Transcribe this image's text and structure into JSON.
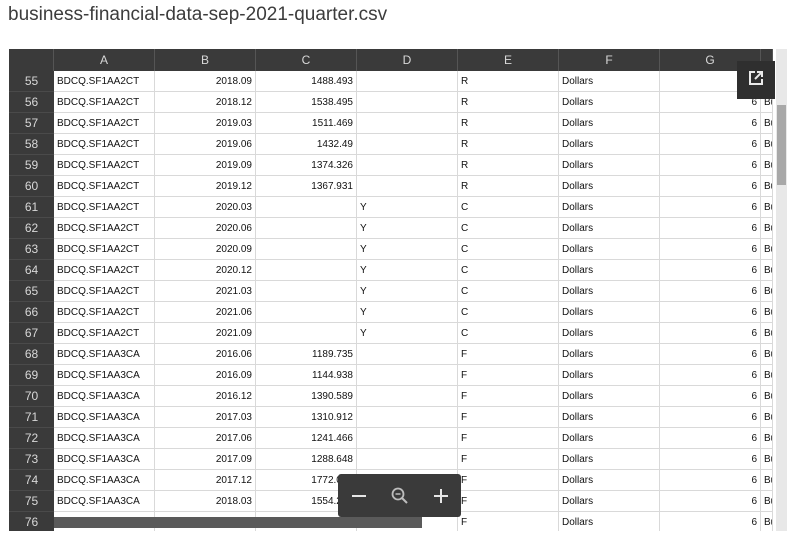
{
  "title": "business-financial-data-sep-2021-quarter.csv",
  "columns": [
    "A",
    "B",
    "C",
    "D",
    "E",
    "F",
    "G",
    ""
  ],
  "rows": [
    {
      "n": "55",
      "a": "BDCQ.SF1AA2CT",
      "b": "2018.09",
      "c": "1488.493",
      "d": "",
      "e": "R",
      "f": "Dollars",
      "g": "6",
      "h": "Bu"
    },
    {
      "n": "56",
      "a": "BDCQ.SF1AA2CT",
      "b": "2018.12",
      "c": "1538.495",
      "d": "",
      "e": "R",
      "f": "Dollars",
      "g": "6",
      "h": "Bu"
    },
    {
      "n": "57",
      "a": "BDCQ.SF1AA2CT",
      "b": "2019.03",
      "c": "1511.469",
      "d": "",
      "e": "R",
      "f": "Dollars",
      "g": "6",
      "h": "Bu"
    },
    {
      "n": "58",
      "a": "BDCQ.SF1AA2CT",
      "b": "2019.06",
      "c": "1432.49",
      "d": "",
      "e": "R",
      "f": "Dollars",
      "g": "6",
      "h": "Bu"
    },
    {
      "n": "59",
      "a": "BDCQ.SF1AA2CT",
      "b": "2019.09",
      "c": "1374.326",
      "d": "",
      "e": "R",
      "f": "Dollars",
      "g": "6",
      "h": "Bu"
    },
    {
      "n": "60",
      "a": "BDCQ.SF1AA2CT",
      "b": "2019.12",
      "c": "1367.931",
      "d": "",
      "e": "R",
      "f": "Dollars",
      "g": "6",
      "h": "Bu"
    },
    {
      "n": "61",
      "a": "BDCQ.SF1AA2CT",
      "b": "2020.03",
      "c": "",
      "d": "Y",
      "e": "C",
      "f": "Dollars",
      "g": "6",
      "h": "Bu"
    },
    {
      "n": "62",
      "a": "BDCQ.SF1AA2CT",
      "b": "2020.06",
      "c": "",
      "d": "Y",
      "e": "C",
      "f": "Dollars",
      "g": "6",
      "h": "Bu"
    },
    {
      "n": "63",
      "a": "BDCQ.SF1AA2CT",
      "b": "2020.09",
      "c": "",
      "d": "Y",
      "e": "C",
      "f": "Dollars",
      "g": "6",
      "h": "Bu"
    },
    {
      "n": "64",
      "a": "BDCQ.SF1AA2CT",
      "b": "2020.12",
      "c": "",
      "d": "Y",
      "e": "C",
      "f": "Dollars",
      "g": "6",
      "h": "Bu"
    },
    {
      "n": "65",
      "a": "BDCQ.SF1AA2CT",
      "b": "2021.03",
      "c": "",
      "d": "Y",
      "e": "C",
      "f": "Dollars",
      "g": "6",
      "h": "Bu"
    },
    {
      "n": "66",
      "a": "BDCQ.SF1AA2CT",
      "b": "2021.06",
      "c": "",
      "d": "Y",
      "e": "C",
      "f": "Dollars",
      "g": "6",
      "h": "Bu"
    },
    {
      "n": "67",
      "a": "BDCQ.SF1AA2CT",
      "b": "2021.09",
      "c": "",
      "d": "Y",
      "e": "C",
      "f": "Dollars",
      "g": "6",
      "h": "Bu"
    },
    {
      "n": "68",
      "a": "BDCQ.SF1AA3CA",
      "b": "2016.06",
      "c": "1189.735",
      "d": "",
      "e": "F",
      "f": "Dollars",
      "g": "6",
      "h": "Bu"
    },
    {
      "n": "69",
      "a": "BDCQ.SF1AA3CA",
      "b": "2016.09",
      "c": "1144.938",
      "d": "",
      "e": "F",
      "f": "Dollars",
      "g": "6",
      "h": "Bu"
    },
    {
      "n": "70",
      "a": "BDCQ.SF1AA3CA",
      "b": "2016.12",
      "c": "1390.589",
      "d": "",
      "e": "F",
      "f": "Dollars",
      "g": "6",
      "h": "Bu"
    },
    {
      "n": "71",
      "a": "BDCQ.SF1AA3CA",
      "b": "2017.03",
      "c": "1310.912",
      "d": "",
      "e": "F",
      "f": "Dollars",
      "g": "6",
      "h": "Bu"
    },
    {
      "n": "72",
      "a": "BDCQ.SF1AA3CA",
      "b": "2017.06",
      "c": "1241.466",
      "d": "",
      "e": "F",
      "f": "Dollars",
      "g": "6",
      "h": "Bu"
    },
    {
      "n": "73",
      "a": "BDCQ.SF1AA3CA",
      "b": "2017.09",
      "c": "1288.648",
      "d": "",
      "e": "F",
      "f": "Dollars",
      "g": "6",
      "h": "Bu"
    },
    {
      "n": "74",
      "a": "BDCQ.SF1AA3CA",
      "b": "2017.12",
      "c": "1772.066",
      "d": "",
      "e": "F",
      "f": "Dollars",
      "g": "6",
      "h": "Bu"
    },
    {
      "n": "75",
      "a": "BDCQ.SF1AA3CA",
      "b": "2018.03",
      "c": "1554.221",
      "d": "",
      "e": "F",
      "f": "Dollars",
      "g": "6",
      "h": "Bu"
    },
    {
      "n": "76",
      "a": "",
      "b": "",
      "c": "",
      "d": "",
      "e": "F",
      "f": "Dollars",
      "g": "6",
      "h": "Bu"
    }
  ],
  "icons": {
    "popout": "open-in-new-icon",
    "zoom_out": "minus-icon",
    "zoom_reset": "magnifier-icon",
    "zoom_in": "plus-icon"
  },
  "colors": {
    "header_bg": "#3a3a3a",
    "header_text": "#d8d8d8",
    "grid_line": "#d9d9d9"
  }
}
